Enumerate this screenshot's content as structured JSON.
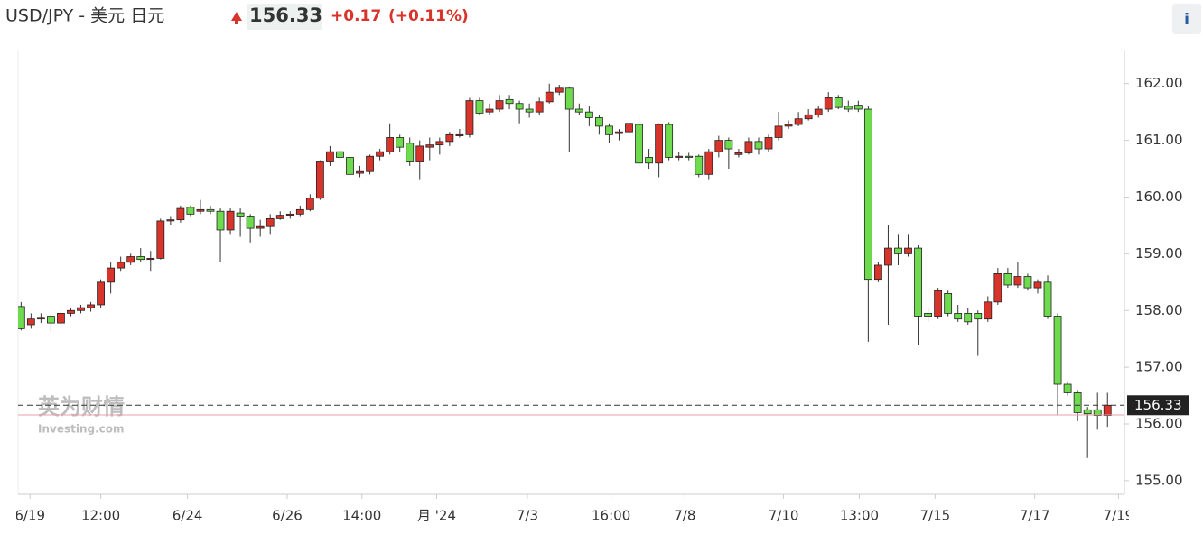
{
  "chart_data": {
    "type": "candlestick",
    "title": "USD/JPY - 美元 日元",
    "last_price": 156.33,
    "change": "+0.17",
    "change_pct": "(+0.11%)",
    "info_button": "i",
    "watermark": [
      "英为财情",
      "Investing.com"
    ],
    "prev_close": 156.16,
    "up_color": "#d9342b",
    "down_color": "#6edb4e",
    "open": [
      158.07,
      157.75,
      157.85,
      157.9,
      157.78,
      157.95,
      158.0,
      158.05,
      158.1,
      158.5,
      158.75,
      158.85,
      158.95,
      158.9,
      158.92,
      159.58,
      159.6,
      159.82,
      159.75,
      159.78,
      159.75,
      159.42,
      159.72,
      159.65,
      159.45,
      159.48,
      159.62,
      159.68,
      159.7,
      159.78,
      159.98,
      160.62,
      160.8,
      160.7,
      160.42,
      160.45,
      160.72,
      160.8,
      161.05,
      160.95,
      160.62,
      160.88,
      160.92,
      160.98,
      161.08,
      161.1,
      161.7,
      161.5,
      161.55,
      161.72,
      161.65,
      161.55,
      161.5,
      161.68,
      161.85,
      161.92,
      161.55,
      161.5,
      161.4,
      161.25,
      161.12,
      161.15,
      161.28,
      160.7,
      160.6,
      161.28,
      160.7,
      160.72,
      160.72,
      160.4,
      160.8,
      161.0,
      160.75,
      160.78,
      160.98,
      160.85,
      161.05,
      161.25,
      161.28,
      161.38,
      161.45,
      161.55,
      161.75,
      161.6,
      161.62,
      161.55,
      158.55,
      158.8,
      159.1,
      159.0,
      159.1,
      157.95,
      157.9,
      158.3,
      157.95,
      157.95,
      157.95,
      157.85,
      158.15,
      158.65,
      158.45,
      158.6,
      158.4,
      158.5,
      157.9,
      156.7,
      156.55,
      156.25,
      156.25,
      156.15
    ],
    "high": [
      158.15,
      157.95,
      157.95,
      157.95,
      158.0,
      158.05,
      158.1,
      158.15,
      158.55,
      158.85,
      158.95,
      159.0,
      159.1,
      159.05,
      159.62,
      159.65,
      159.85,
      159.85,
      159.95,
      159.85,
      159.8,
      159.8,
      159.8,
      159.7,
      159.6,
      159.7,
      159.75,
      159.75,
      159.85,
      160.05,
      160.65,
      160.9,
      160.85,
      160.75,
      160.55,
      160.75,
      160.85,
      161.3,
      161.1,
      161.05,
      161.0,
      161.05,
      161.05,
      161.15,
      161.2,
      161.75,
      161.75,
      161.65,
      161.8,
      161.8,
      161.7,
      161.65,
      161.75,
      162.0,
      161.98,
      161.95,
      161.65,
      161.6,
      161.45,
      161.3,
      161.2,
      161.35,
      161.4,
      160.85,
      161.3,
      161.32,
      160.8,
      160.78,
      160.75,
      160.85,
      161.08,
      161.05,
      160.85,
      161.05,
      161.05,
      161.1,
      161.5,
      161.35,
      161.5,
      161.55,
      161.6,
      161.85,
      161.8,
      161.7,
      161.7,
      161.6,
      158.85,
      159.5,
      159.35,
      159.35,
      159.15,
      158.05,
      158.4,
      158.35,
      158.1,
      158.05,
      158.0,
      158.25,
      158.75,
      158.75,
      158.85,
      158.65,
      158.55,
      158.62,
      157.95,
      156.75,
      156.6,
      156.3,
      156.55,
      156.55
    ],
    "low": [
      157.65,
      157.68,
      157.78,
      157.62,
      157.75,
      157.9,
      157.95,
      157.98,
      158.05,
      158.3,
      158.7,
      158.8,
      158.85,
      158.7,
      158.9,
      159.5,
      159.55,
      159.65,
      159.7,
      159.7,
      158.85,
      159.35,
      159.3,
      159.2,
      159.3,
      159.35,
      159.6,
      159.62,
      159.65,
      159.75,
      159.95,
      160.55,
      160.6,
      160.35,
      160.35,
      160.4,
      160.65,
      160.75,
      160.8,
      160.55,
      160.3,
      160.65,
      160.75,
      160.9,
      161.05,
      161.05,
      161.45,
      161.45,
      161.5,
      161.55,
      161.3,
      161.4,
      161.45,
      161.65,
      161.8,
      160.8,
      161.45,
      161.25,
      161.1,
      160.95,
      161.0,
      161.1,
      160.55,
      160.5,
      160.35,
      160.65,
      160.65,
      160.65,
      160.35,
      160.3,
      160.7,
      160.5,
      160.7,
      160.75,
      160.75,
      160.8,
      161.0,
      161.2,
      161.25,
      161.35,
      161.4,
      161.5,
      161.55,
      161.5,
      161.5,
      157.45,
      158.5,
      157.75,
      158.8,
      158.95,
      157.4,
      157.8,
      157.85,
      157.9,
      157.8,
      157.75,
      157.2,
      157.8,
      158.1,
      158.4,
      158.4,
      158.35,
      158.3,
      157.85,
      156.15,
      156.5,
      156.05,
      155.4,
      155.9,
      155.95
    ],
    "close": [
      157.68,
      157.85,
      157.88,
      157.78,
      157.95,
      158.0,
      158.05,
      158.1,
      158.5,
      158.75,
      158.85,
      158.95,
      158.9,
      158.92,
      159.58,
      159.6,
      159.8,
      159.7,
      159.78,
      159.75,
      159.42,
      159.75,
      159.65,
      159.45,
      159.48,
      159.62,
      159.68,
      159.7,
      159.78,
      159.98,
      160.62,
      160.8,
      160.7,
      160.4,
      160.45,
      160.72,
      160.8,
      161.05,
      160.88,
      160.62,
      160.9,
      160.92,
      160.98,
      161.1,
      161.1,
      161.7,
      161.48,
      161.55,
      161.7,
      161.65,
      161.55,
      161.5,
      161.68,
      161.85,
      161.92,
      161.55,
      161.5,
      161.4,
      161.25,
      161.1,
      161.15,
      161.3,
      160.6,
      160.6,
      161.28,
      160.7,
      160.72,
      160.7,
      160.4,
      160.8,
      161.0,
      160.85,
      160.78,
      160.98,
      160.85,
      161.05,
      161.25,
      161.28,
      161.38,
      161.45,
      161.55,
      161.75,
      161.58,
      161.55,
      161.55,
      158.55,
      158.8,
      159.1,
      159.0,
      159.1,
      157.9,
      157.9,
      158.35,
      157.95,
      157.85,
      157.8,
      157.85,
      158.15,
      158.65,
      158.45,
      158.6,
      158.4,
      158.5,
      157.9,
      156.7,
      156.55,
      156.2,
      156.18,
      156.15,
      156.33
    ],
    "xlim": [
      -0.3,
      110.7
    ],
    "xticks": [
      {
        "value": 0.9,
        "label": "6/19"
      },
      {
        "value": 8,
        "label": "12:00"
      },
      {
        "value": 16.7,
        "label": "6/24"
      },
      {
        "value": 26.7,
        "label": "6/26"
      },
      {
        "value": 34.2,
        "label": "14:00"
      },
      {
        "value": 41.7,
        "label": "月 '24"
      },
      {
        "value": 50.8,
        "label": "7/3"
      },
      {
        "value": 59.2,
        "label": "16:00"
      },
      {
        "value": 66.6,
        "label": "7/8"
      },
      {
        "value": 76.5,
        "label": "7/10"
      },
      {
        "value": 84.1,
        "label": "13:00"
      },
      {
        "value": 91.7,
        "label": "7/15"
      },
      {
        "value": 101.7,
        "label": "7/17"
      },
      {
        "value": 110.1,
        "label": "7/19"
      }
    ],
    "ylim": [
      154.76,
      162.6
    ],
    "yticks": [
      {
        "value": 155,
        "label": "155.00"
      },
      {
        "value": 156,
        "label": "156.00"
      },
      {
        "value": 157,
        "label": "157.00"
      },
      {
        "value": 158,
        "label": "158.00"
      },
      {
        "value": 159,
        "label": "159.00"
      },
      {
        "value": 160,
        "label": "160.00"
      },
      {
        "value": 161,
        "label": "161.00"
      },
      {
        "value": 162,
        "label": "162.00"
      }
    ],
    "grid": false
  }
}
